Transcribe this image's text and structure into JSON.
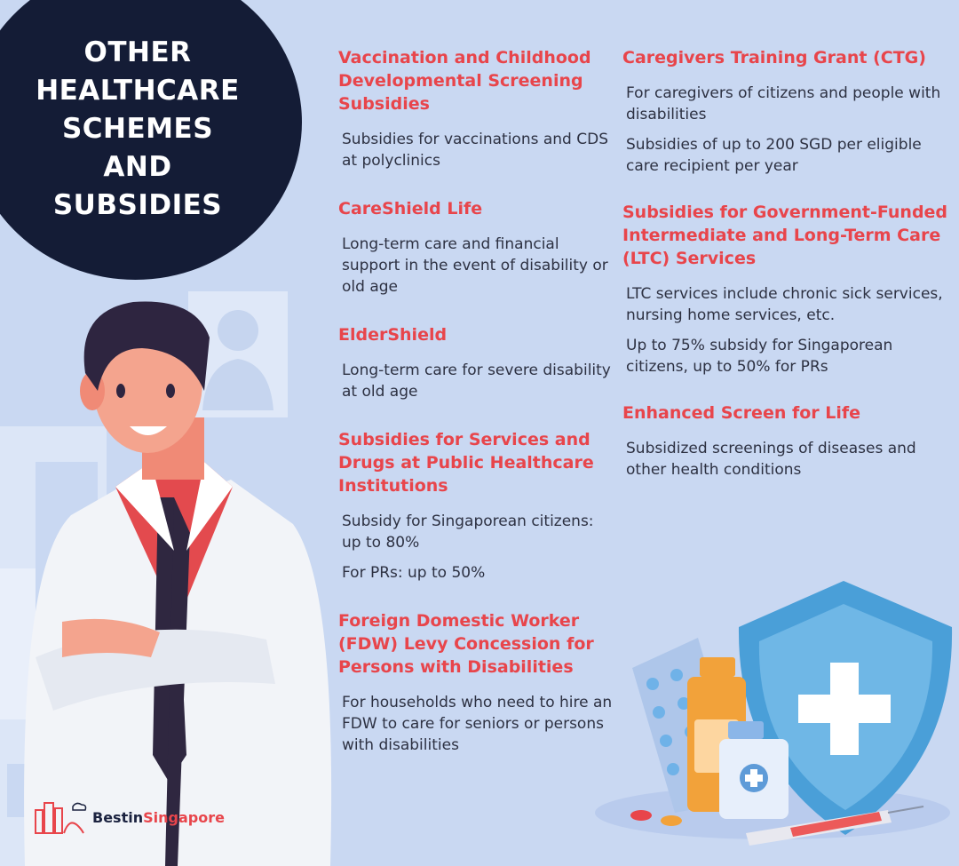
{
  "title": "OTHER HEALTHCARE SCHEMES AND SUBSIDIES",
  "left_schemes": [
    {
      "title": "Vaccination and Childhood Developmental Screening Subsidies",
      "desc": [
        "Subsidies for vaccinations and CDS at polyclinics"
      ]
    },
    {
      "title": "CareShield Life",
      "desc": [
        "Long-term care and financial support in the event of disability or old age"
      ]
    },
    {
      "title": "ElderShield",
      "desc": [
        "Long-term care for severe disability at old age"
      ]
    },
    {
      "title": "Subsidies for Services and Drugs at Public Healthcare Institutions",
      "desc": [
        "Subsidy for Singaporean citizens: up to 80%",
        "For PRs: up to 50%"
      ]
    },
    {
      "title": "Foreign Domestic Worker (FDW) Levy Concession for Persons with Disabilities",
      "desc": [
        "For households who need to hire an FDW to care for seniors or persons with disabilities"
      ]
    }
  ],
  "right_schemes": [
    {
      "title": "Caregivers Training Grant (CTG)",
      "desc": [
        "For caregivers of citizens and people with disabilities",
        "Subsidies of up to 200 SGD per eligible care recipient per year"
      ]
    },
    {
      "title": "Subsidies for Government-Funded Intermediate and Long-Term Care (LTC) Services",
      "desc": [
        "LTC services include chronic sick services, nursing home services, etc.",
        "Up to 75% subsidy for Singaporean citizens, up to 50% for PRs"
      ]
    },
    {
      "title": "Enhanced Screen for Life",
      "desc": [
        "Subsidized screenings of diseases and other health conditions"
      ]
    }
  ],
  "logo": {
    "part1": "Bestin",
    "part2": "Singapore"
  },
  "icons": [
    "doctor-illustration",
    "xray-icon",
    "shield-cross-icon",
    "medicine-bottle-icon",
    "pill-blister-icon",
    "syringe-icon",
    "city-logo-icon"
  ],
  "colors": {
    "background": "#c9d8f2",
    "title_circle": "#141c36",
    "heading": "#e8454b",
    "body_text": "#2d3142",
    "shield": "#4a9fd8"
  }
}
